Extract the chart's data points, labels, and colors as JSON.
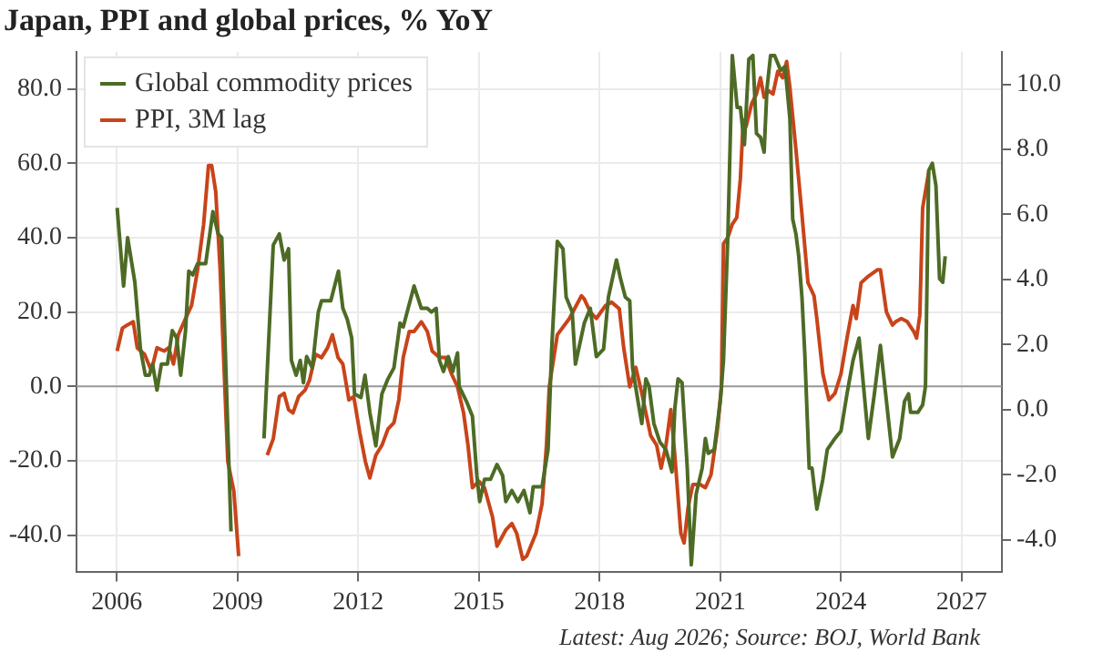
{
  "chart_data": {
    "type": "line",
    "title": "Japan, PPI and global prices, % YoY",
    "annotations": [
      "Latest: Aug 2026; Source: BOJ, World Bank"
    ],
    "xlim": [
      2005,
      2028
    ],
    "xticks": [
      2006,
      2009,
      2012,
      2015,
      2018,
      2021,
      2024,
      2027
    ],
    "ylim": [
      -50,
      90
    ],
    "yticks": [
      {
        "value": -40,
        "label": "-40.0"
      },
      {
        "value": -20,
        "label": "-20.0"
      },
      {
        "value": 0,
        "label": "0.0"
      },
      {
        "value": 20,
        "label": "20.0"
      },
      {
        "value": 40,
        "label": "40.0"
      },
      {
        "value": 60,
        "label": "60.0"
      },
      {
        "value": 80,
        "label": "80.0"
      }
    ],
    "y2lim": [
      -5,
      11
    ],
    "y2ticks": [
      {
        "value": -4,
        "label": "-4.0"
      },
      {
        "value": -2,
        "label": "-2.0"
      },
      {
        "value": 0,
        "label": "0.0"
      },
      {
        "value": 2,
        "label": "2.0"
      },
      {
        "value": 4,
        "label": "4.0"
      },
      {
        "value": 6,
        "label": "6.0"
      },
      {
        "value": 8,
        "label": "8.0"
      },
      {
        "value": 10,
        "label": "10.0"
      }
    ],
    "grid": true,
    "legend": "top left",
    "marker": "none",
    "line_style": "solid",
    "ref_lines": [
      {
        "axis": "y",
        "value": 0,
        "color": "#999999"
      }
    ],
    "series": [
      {
        "name": "Global commodity prices",
        "color": "#4d6b25",
        "axis": "y",
        "x": [
          2006.01,
          2006.17,
          2006.27,
          2006.45,
          2006.59,
          2006.71,
          2006.81,
          2006.89,
          2007.0,
          2007.11,
          2007.26,
          2007.38,
          2007.49,
          2007.59,
          2007.71,
          2007.79,
          2007.89,
          2008.01,
          2008.21,
          2008.39,
          2008.52,
          2008.61,
          2008.84,
          2008.97,
          2009.51,
          2009.66,
          2009.89,
          2010.04,
          2010.16,
          2010.27,
          2010.34,
          2010.46,
          2010.56,
          2010.64,
          2010.72,
          2010.86,
          2011.01,
          2011.09,
          2011.32,
          2011.51,
          2011.62,
          2011.73,
          2011.84,
          2011.91,
          2012.07,
          2012.17,
          2012.29,
          2012.44,
          2012.59,
          2012.74,
          2012.89,
          2013.04,
          2013.12,
          2013.39,
          2013.57,
          2013.72,
          2013.82,
          2013.94,
          2014.02,
          2014.12,
          2014.24,
          2014.35,
          2014.47,
          2014.51,
          2014.69,
          2014.84,
          2014.95,
          2015.02,
          2015.14,
          2015.29,
          2015.45,
          2015.59,
          2015.67,
          2015.82,
          2015.97,
          2016.12,
          2016.27,
          2016.35,
          2016.57,
          2016.72,
          2016.81,
          2016.95,
          2017.09,
          2017.17,
          2017.32,
          2017.4,
          2017.62,
          2017.77,
          2017.92,
          2018.1,
          2018.22,
          2018.42,
          2018.52,
          2018.64,
          2018.75,
          2018.82,
          2018.97,
          2019.05,
          2019.15,
          2019.23,
          2019.35,
          2019.5,
          2019.65,
          2019.8,
          2019.87,
          2019.95,
          2020.05,
          2020.18,
          2020.28,
          2020.4,
          2020.55,
          2020.63,
          2020.7,
          2020.85,
          2021.0,
          2021.08,
          2021.19,
          2021.3,
          2021.42,
          2021.5,
          2021.6,
          2021.71,
          2021.81,
          2021.9,
          2022.0,
          2022.09,
          2022.16,
          2022.25,
          2022.35,
          2022.5,
          2022.61,
          2022.73,
          2022.8,
          2022.88,
          2022.95,
          2023.03,
          2023.1,
          2023.21,
          2023.28,
          2023.4,
          2023.55,
          2023.66,
          2023.85,
          2024.0,
          2024.15,
          2024.3,
          2024.45,
          2024.68,
          2024.83,
          2024.98,
          2025.13,
          2025.28,
          2025.46,
          2025.58,
          2025.68,
          2025.73,
          2025.91,
          2026.03,
          2026.1,
          2026.18,
          2026.27,
          2026.36,
          2026.45,
          2026.53,
          2026.59
        ],
        "values": [
          48,
          27,
          40,
          28,
          10,
          3,
          3,
          6,
          -1,
          6,
          6,
          15,
          13,
          3,
          15,
          31,
          30,
          33,
          33,
          47,
          41,
          40,
          -39,
          null,
          null,
          -14,
          38,
          41,
          34,
          37,
          7,
          3,
          7,
          1,
          8,
          5,
          20,
          23,
          23,
          31,
          21,
          18,
          13,
          -2,
          -3,
          3,
          -7,
          -16,
          -2,
          2,
          5,
          17,
          16,
          27,
          21,
          21,
          20,
          21,
          7,
          4,
          8,
          4,
          9,
          0,
          -4,
          -8,
          -24,
          -31,
          -25,
          -25,
          -21,
          -24,
          -31,
          -28,
          -31,
          -28,
          -34,
          -27,
          -27,
          -17,
          10,
          39,
          37,
          24,
          20,
          6,
          17,
          21,
          8,
          10,
          24,
          34,
          29,
          24,
          23,
          5,
          -5,
          -10,
          2,
          0,
          -10,
          -15,
          -17,
          -23,
          -6,
          2,
          1,
          -22,
          -48,
          -29,
          -22,
          -14,
          -18,
          -17,
          -4,
          7,
          41,
          89,
          75,
          75,
          65,
          88,
          89,
          68,
          67,
          63,
          80,
          89,
          89,
          85,
          86,
          72,
          45,
          41,
          35,
          24,
          9,
          -22,
          -22,
          -33,
          -25,
          -17,
          -14,
          -12,
          -2,
          7,
          13,
          -14,
          -2,
          11,
          -4,
          -19,
          -14,
          -4,
          -2,
          -7,
          -7,
          -5,
          0,
          58,
          60,
          54,
          29,
          28,
          35
        ]
      },
      {
        "name": "PPI, 3M lag",
        "color": "#c8441a",
        "axis": "y2",
        "x": [
          2006.01,
          2006.14,
          2006.26,
          2006.41,
          2006.51,
          2006.69,
          2006.86,
          2007.0,
          2007.18,
          2007.29,
          2007.41,
          2007.53,
          2007.71,
          2007.86,
          2008.01,
          2008.16,
          2008.28,
          2008.36,
          2008.46,
          2008.57,
          2008.64,
          2008.76,
          2008.91,
          2009.03,
          2009.13,
          2009.51,
          2009.74,
          2009.89,
          2010.04,
          2010.16,
          2010.27,
          2010.38,
          2010.52,
          2010.68,
          2010.79,
          2010.94,
          2011.09,
          2011.24,
          2011.36,
          2011.5,
          2011.62,
          2011.77,
          2011.89,
          2012.04,
          2012.18,
          2012.29,
          2012.44,
          2012.59,
          2012.74,
          2012.89,
          2013.01,
          2013.12,
          2013.27,
          2013.39,
          2013.57,
          2013.72,
          2013.84,
          2014.02,
          2014.17,
          2014.32,
          2014.47,
          2014.62,
          2014.73,
          2014.84,
          2015.0,
          2015.14,
          2015.34,
          2015.45,
          2015.67,
          2015.82,
          2015.94,
          2016.09,
          2016.19,
          2016.42,
          2016.57,
          2016.68,
          2016.75,
          2016.95,
          2017.25,
          2017.55,
          2017.62,
          2017.77,
          2017.92,
          2018.15,
          2018.3,
          2018.49,
          2018.6,
          2018.75,
          2018.9,
          2019.05,
          2019.27,
          2019.42,
          2019.53,
          2019.65,
          2019.77,
          2019.87,
          2020.02,
          2020.1,
          2020.2,
          2020.32,
          2020.5,
          2020.63,
          2020.77,
          2020.92,
          2021.03,
          2021.08,
          2021.19,
          2021.3,
          2021.41,
          2021.5,
          2021.57,
          2021.64,
          2021.78,
          2021.9,
          2022.0,
          2022.09,
          2022.2,
          2022.31,
          2022.43,
          2022.55,
          2022.65,
          2022.73,
          2022.88,
          2023.03,
          2023.18,
          2023.33,
          2023.4,
          2023.55,
          2023.7,
          2023.85,
          2024.0,
          2024.15,
          2024.3,
          2024.38,
          2024.5,
          2024.68,
          2024.91,
          2024.98,
          2025.13,
          2025.28,
          2025.36,
          2025.5,
          2025.65,
          2025.81,
          2025.88,
          2025.96,
          2026.03,
          2026.18
        ],
        "values": [
          1.8,
          2.5,
          2.6,
          2.7,
          1.9,
          1.7,
          1.2,
          1.9,
          1.8,
          1.9,
          1.4,
          2.3,
          2.8,
          3.2,
          4.3,
          5.7,
          7.5,
          7.5,
          6.7,
          4.3,
          2.1,
          -1.6,
          -2.5,
          -4.5,
          null,
          null,
          -1.4,
          -0.9,
          0.4,
          0.5,
          0,
          -0.1,
          0.4,
          0.6,
          0.9,
          1.7,
          1.6,
          1.9,
          2.3,
          1.6,
          1.4,
          0.3,
          0.4,
          -0.7,
          -1.6,
          -2.1,
          -1.4,
          -1.1,
          -0.6,
          -0.4,
          0.3,
          1.6,
          2.4,
          2.4,
          2.7,
          2.4,
          1.8,
          1.6,
          1.6,
          1.1,
          0.7,
          -0.1,
          -1.1,
          -2.4,
          -2.2,
          -2.4,
          -3.3,
          -4.2,
          -3.7,
          -3.5,
          -3.8,
          -4.6,
          -4.5,
          -3.8,
          -2.9,
          -1.1,
          0.7,
          2.3,
          2.8,
          3.5,
          3.4,
          3,
          2.8,
          3.2,
          3.3,
          3.1,
          1.9,
          0.7,
          1.3,
          0.5,
          -0.8,
          -1.1,
          -1.8,
          -1.1,
          0,
          -1.4,
          -3.8,
          -4.1,
          -3,
          -2.3,
          -2.3,
          -2.4,
          -2,
          -0.7,
          0.7,
          5.1,
          5.3,
          5.7,
          5.9,
          7.1,
          8.9,
          8.7,
          9.4,
          9.7,
          10.2,
          9.6,
          9.8,
          9.7,
          10.4,
          10.2,
          10.7,
          9.9,
          8,
          6,
          3.9,
          3.5,
          2.8,
          1.1,
          0.3,
          0.5,
          1.1,
          2.2,
          3.2,
          2.8,
          3.9,
          4.1,
          4.3,
          4.3,
          3,
          2.6,
          2.7,
          2.8,
          2.7,
          2.4,
          2.2,
          2.9,
          6.2,
          7.3
        ]
      }
    ]
  }
}
